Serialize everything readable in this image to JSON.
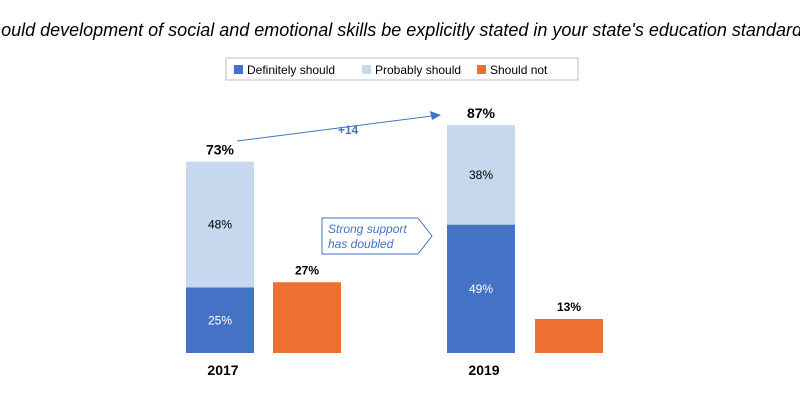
{
  "chart_data": {
    "type": "bar",
    "title": "Should development of social and emotional skills be explicitly stated in your state's education standards?",
    "categories": [
      "2017",
      "2019"
    ],
    "stacked_series": [
      {
        "name": "Definitely should",
        "values": [
          25,
          49
        ],
        "labels": [
          "25%",
          "49%"
        ],
        "color": "#4472C4",
        "label_color": "#ffffff"
      },
      {
        "name": "Probably should",
        "values": [
          48,
          38
        ],
        "labels": [
          "48%",
          "38%"
        ],
        "color": "#C5D8EE",
        "label_color": "#000000"
      }
    ],
    "stack_totals": [
      73,
      87
    ],
    "stack_total_labels": [
      "73%",
      "87%"
    ],
    "side_series": {
      "name": "Should not",
      "values": [
        27,
        13
      ],
      "labels": [
        "27%",
        "13%"
      ],
      "color": "#ED7031"
    },
    "legend_order": [
      "Definitely should",
      "Probably should",
      "Should not"
    ],
    "legend_position": "top-center",
    "ylim": [
      0,
      100
    ],
    "grid": false,
    "annotations": {
      "arrow_label": "+14",
      "callout_lines": [
        "Strong support",
        "has doubled"
      ]
    },
    "accent_color": "#4472C4"
  }
}
